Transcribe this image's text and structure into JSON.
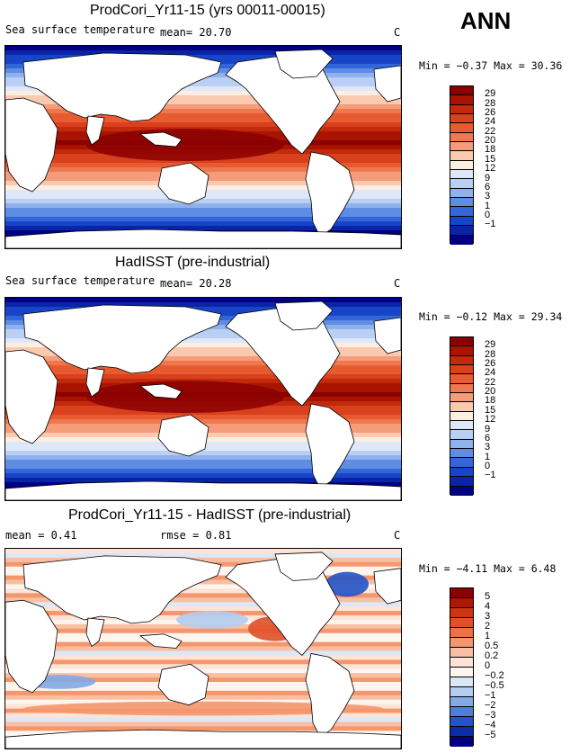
{
  "season": "ANN",
  "panels": [
    {
      "title": "ProdCori_Yr11-15 (yrs 00011-00015)",
      "left_label": "Sea surface temperature",
      "mean_text": "mean=  20.70",
      "rmse_text": "",
      "unit": "C",
      "min_label": "Min =",
      "min_value": "−0.37",
      "max_label": "Max =",
      "max_value": "30.36",
      "kind": "abs",
      "colorbar_labels": [
        "29",
        "28",
        "26",
        "24",
        "22",
        "20",
        "18",
        "15",
        "12",
        "9",
        "6",
        "3",
        "1",
        "0",
        "−1"
      ]
    },
    {
      "title": "HadISST (pre-industrial)",
      "left_label": "Sea surface temperature",
      "mean_text": "mean=  20.28",
      "rmse_text": "",
      "unit": "C",
      "min_label": "Min =",
      "min_value": "−0.12",
      "max_label": "Max =",
      "max_value": "29.34",
      "kind": "abs",
      "colorbar_labels": [
        "29",
        "28",
        "26",
        "24",
        "22",
        "20",
        "18",
        "15",
        "12",
        "9",
        "6",
        "3",
        "1",
        "0",
        "−1"
      ]
    },
    {
      "title": "ProdCori_Yr11-15 - HadISST (pre-industrial)",
      "left_label": "mean =   0.41",
      "mean_text": "",
      "rmse_text": "rmse =   0.81",
      "unit": "C",
      "min_label": "Min =",
      "min_value": "−4.11",
      "max_label": "Max =",
      "max_value": "6.48",
      "kind": "diff",
      "colorbar_labels": [
        "5",
        "4",
        "3",
        "2",
        "1",
        "0.5",
        "0.2",
        "0",
        "−0.2",
        "−0.5",
        "−1",
        "−2",
        "−3",
        "−4",
        "−5"
      ]
    }
  ],
  "colors": {
    "abs_scale": [
      "#8b0000",
      "#a81400",
      "#c22a0b",
      "#d9401e",
      "#e85a30",
      "#f07850",
      "#f59c7a",
      "#f9c9b0",
      "#fdeee2",
      "#dfe8f8",
      "#b9cff4",
      "#8fb1ec",
      "#5e8de3",
      "#3366d9",
      "#1845c8",
      "#0a24a8",
      "#000080"
    ],
    "diff_scale": [
      "#8b0000",
      "#b01600",
      "#cc3414",
      "#e05028",
      "#ec7048",
      "#f4976e",
      "#f9bfa2",
      "#fde4d6",
      "#fdf5ee",
      "#dce7f7",
      "#b3ccf0",
      "#83a9e6",
      "#4f7ed9",
      "#2453c7",
      "#0b2ca8",
      "#000080"
    ],
    "land": "#ffffff",
    "coast": "#000000"
  }
}
